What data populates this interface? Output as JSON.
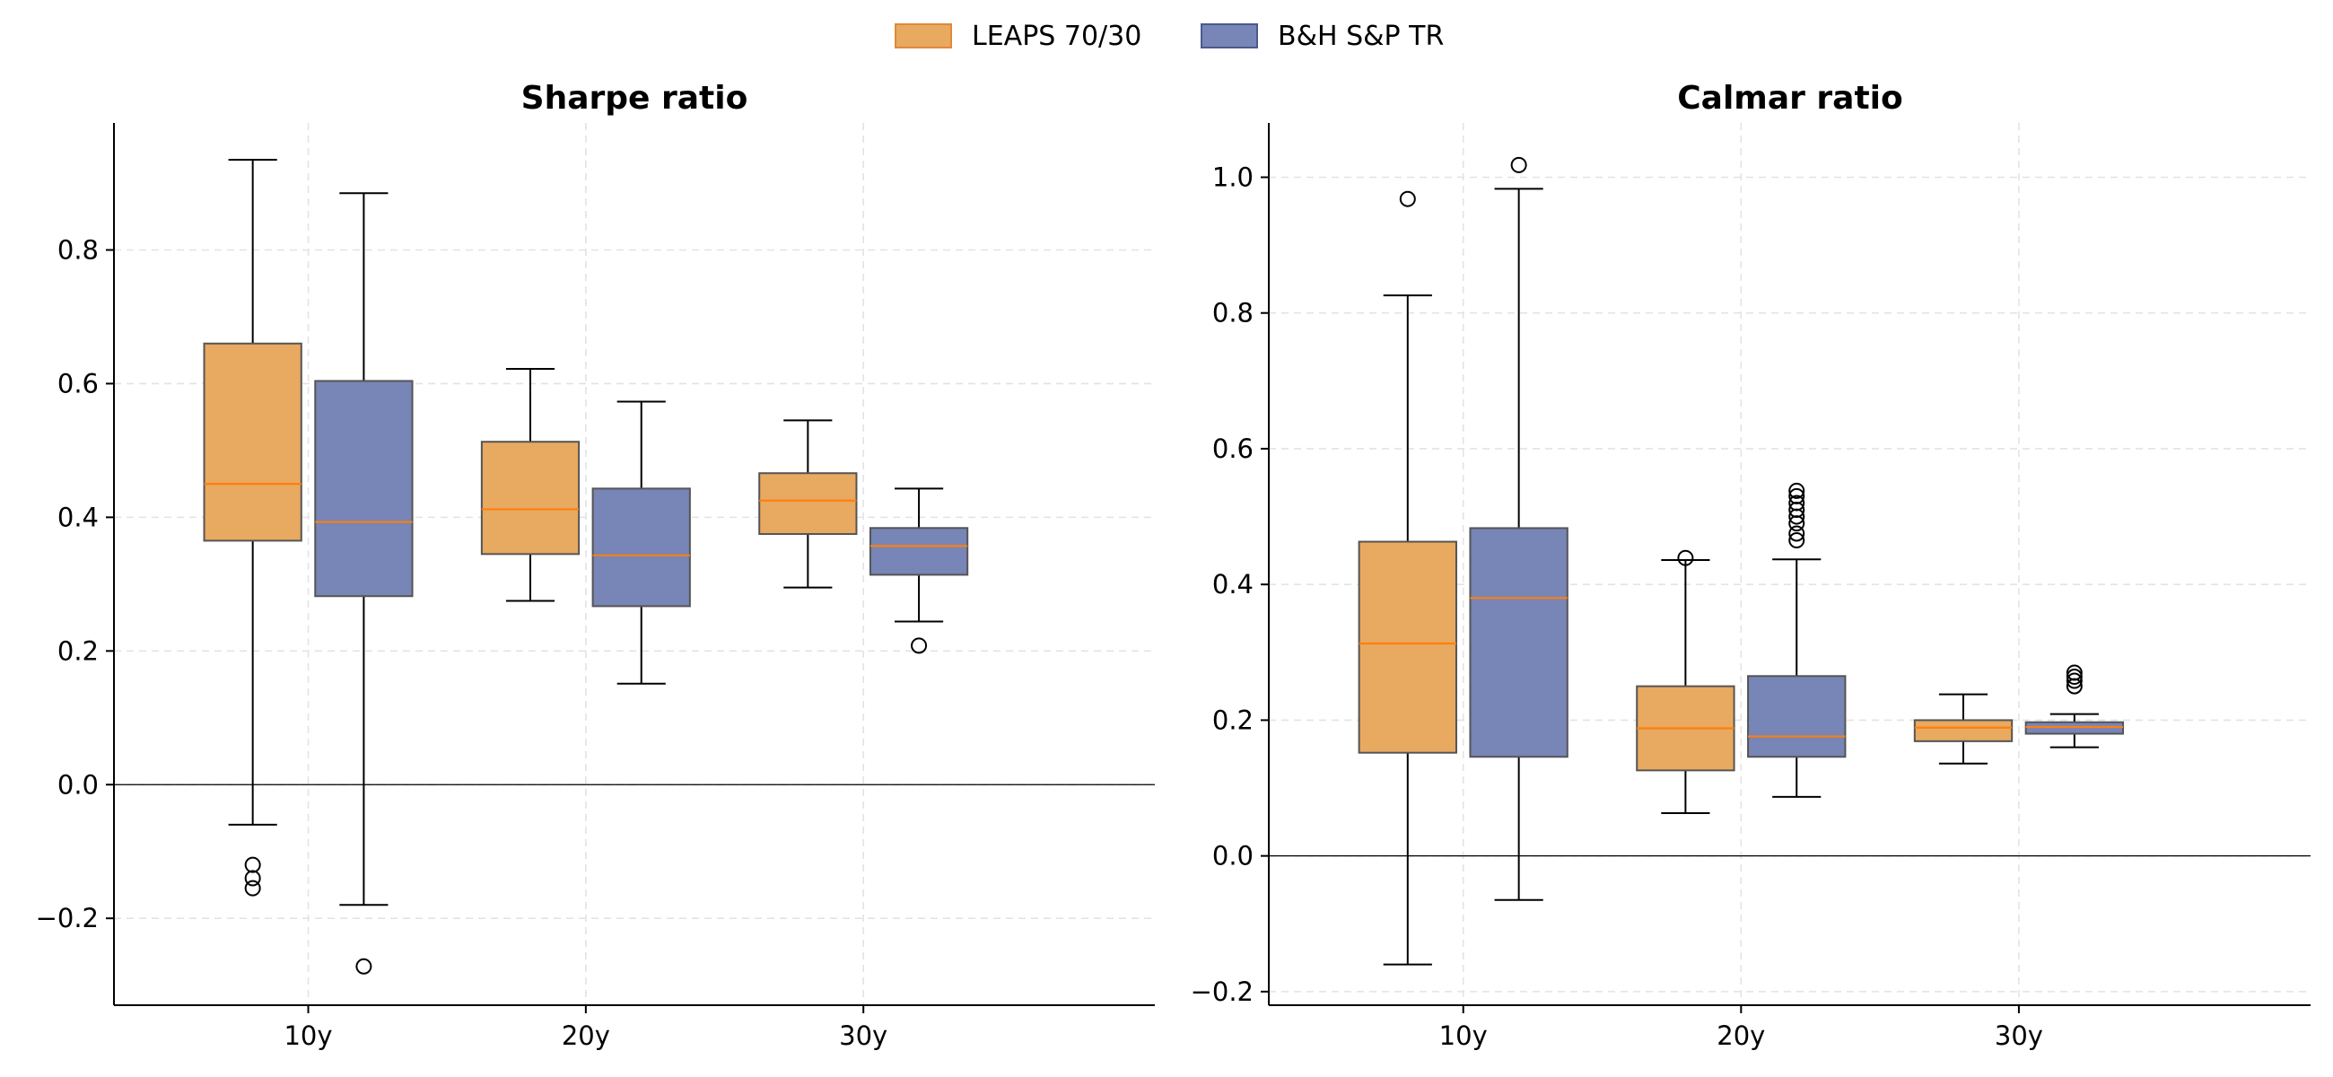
{
  "legend": [
    {
      "label": "LEAPS 70/30",
      "fill": "#E8A960",
      "edge": "#E0893A"
    },
    {
      "label": "B&H S&P TR",
      "fill": "#7785B7",
      "edge": "#4B5A8E"
    }
  ],
  "median_color": "#FF7F0E",
  "chart_data": [
    {
      "type": "box",
      "title": "Sharpe ratio",
      "categories": [
        "10y",
        "20y",
        "30y"
      ],
      "ylim": [
        -0.33,
        0.99
      ],
      "yticks": [
        -0.2,
        0.0,
        0.2,
        0.4,
        0.6,
        0.8
      ],
      "ytick_labels": [
        "−0.2",
        "0.0",
        "0.2",
        "0.4",
        "0.6",
        "0.8"
      ],
      "grid": true,
      "zero_line": true,
      "series": [
        {
          "name": "LEAPS 70/30",
          "boxes": [
            {
              "whislo": -0.06,
              "q1": 0.365,
              "med": 0.45,
              "q3": 0.66,
              "whishi": 0.935,
              "fliers": [
                -0.12,
                -0.14,
                -0.155
              ]
            },
            {
              "whislo": 0.275,
              "q1": 0.345,
              "med": 0.412,
              "q3": 0.513,
              "whishi": 0.622,
              "fliers": []
            },
            {
              "whislo": 0.295,
              "q1": 0.375,
              "med": 0.425,
              "q3": 0.466,
              "whishi": 0.545,
              "fliers": []
            }
          ]
        },
        {
          "name": "B&H S&P TR",
          "boxes": [
            {
              "whislo": -0.18,
              "q1": 0.282,
              "med": 0.393,
              "q3": 0.604,
              "whishi": 0.885,
              "fliers": [
                -0.272
              ]
            },
            {
              "whislo": 0.151,
              "q1": 0.267,
              "med": 0.343,
              "q3": 0.443,
              "whishi": 0.573,
              "fliers": []
            },
            {
              "whislo": 0.244,
              "q1": 0.314,
              "med": 0.357,
              "q3": 0.384,
              "whishi": 0.443,
              "fliers": [
                0.208
              ]
            }
          ]
        }
      ]
    },
    {
      "type": "box",
      "title": "Calmar ratio",
      "categories": [
        "10y",
        "20y",
        "30y"
      ],
      "ylim": [
        -0.22,
        1.08
      ],
      "yticks": [
        -0.2,
        0.0,
        0.2,
        0.4,
        0.6,
        0.8,
        1.0
      ],
      "ytick_labels": [
        "−0.2",
        "0.0",
        "0.2",
        "0.4",
        "0.6",
        "0.8",
        "1.0"
      ],
      "grid": true,
      "zero_line": true,
      "series": [
        {
          "name": "LEAPS 70/30",
          "boxes": [
            {
              "whislo": -0.16,
              "q1": 0.152,
              "med": 0.313,
              "q3": 0.463,
              "whishi": 0.826,
              "fliers": [
                0.968
              ]
            },
            {
              "whislo": 0.063,
              "q1": 0.126,
              "med": 0.188,
              "q3": 0.25,
              "whishi": 0.436,
              "fliers": [
                0.439
              ]
            },
            {
              "whislo": 0.136,
              "q1": 0.169,
              "med": 0.189,
              "q3": 0.2,
              "whishi": 0.238,
              "fliers": []
            }
          ]
        },
        {
          "name": "B&H S&P TR",
          "boxes": [
            {
              "whislo": -0.065,
              "q1": 0.146,
              "med": 0.38,
              "q3": 0.483,
              "whishi": 0.983,
              "fliers": [
                1.018
              ]
            },
            {
              "whislo": 0.087,
              "q1": 0.146,
              "med": 0.176,
              "q3": 0.265,
              "whishi": 0.437,
              "fliers": [
                0.465,
                0.475,
                0.49,
                0.5,
                0.51,
                0.52,
                0.53,
                0.538
              ]
            },
            {
              "whislo": 0.16,
              "q1": 0.18,
              "med": 0.19,
              "q3": 0.197,
              "whishi": 0.209,
              "fliers": [
                0.25,
                0.258,
                0.264,
                0.27
              ]
            }
          ]
        }
      ]
    }
  ]
}
